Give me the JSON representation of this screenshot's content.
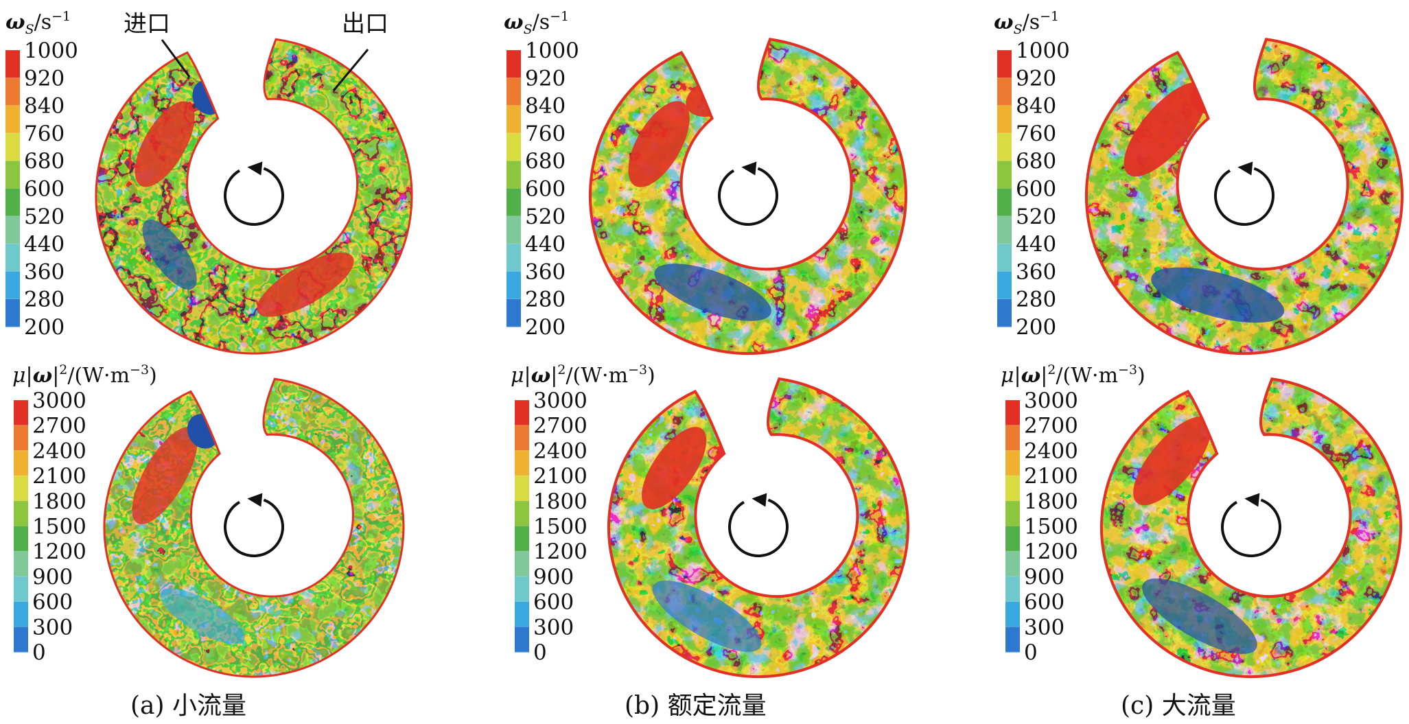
{
  "colorbars": {
    "vorticity": {
      "title_main": "ω",
      "title_sub": "S",
      "title_unit": "/s",
      "title_exp": "−1",
      "ticks": [
        "1000",
        "920",
        "840",
        "760",
        "680",
        "600",
        "520",
        "440",
        "360",
        "280",
        "200"
      ]
    },
    "dissipation": {
      "title_mu": "μ|",
      "title_omega": "ω",
      "title_rest": "|",
      "title_sq": "2",
      "title_unit": "/(W·m",
      "title_exp": "−3",
      "title_close": ")",
      "ticks": [
        "3000",
        "2700",
        "2400",
        "2100",
        "1800",
        "1500",
        "1200",
        "900",
        "600",
        "300",
        "0"
      ]
    }
  },
  "palette": [
    "#2050a8",
    "#2e78cf",
    "#3aa8e0",
    "#6fc8cc",
    "#7fc89a",
    "#52b04a",
    "#8cc63f",
    "#d8dc40",
    "#f0b030",
    "#ec7a30",
    "#e23024"
  ],
  "callouts": {
    "inlet": "进口",
    "outlet": "出口"
  },
  "captions": [
    "(a) 小流量",
    "(b) 额定流量",
    "(c) 大流量"
  ]
}
